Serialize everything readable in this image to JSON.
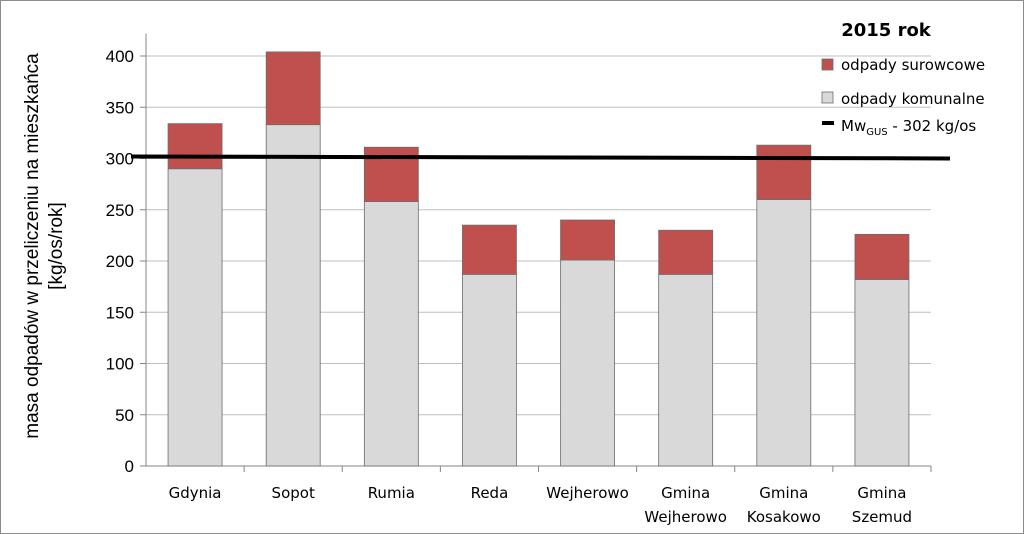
{
  "chart_data": {
    "type": "bar",
    "stacked": true,
    "title": "2015 rok",
    "ylabel": "masa odpadów w przeliczeniu na mieszkańca",
    "ylabel_unit": "[kg/os/rok]",
    "xlabel": "",
    "ylim": [
      0,
      420
    ],
    "yticks": [
      0,
      50,
      100,
      150,
      200,
      250,
      300,
      350,
      400
    ],
    "grid": true,
    "legend_position": "top-right",
    "categories": [
      [
        "Gdynia"
      ],
      [
        "Sopot"
      ],
      [
        "Rumia"
      ],
      [
        "Reda"
      ],
      [
        "Wejherowo"
      ],
      [
        "Gmina",
        "Wejherowo"
      ],
      [
        "Gmina",
        "Kosakowo"
      ],
      [
        "Gmina",
        "Szemud"
      ]
    ],
    "series": [
      {
        "name": "odpady komunalne",
        "color": "#d9d9d9",
        "values": [
          290,
          333,
          258,
          187,
          201,
          187,
          260,
          182
        ]
      },
      {
        "name": "odpady surowcowe",
        "color": "#c0504d",
        "values": [
          44,
          71,
          53,
          48,
          39,
          43,
          53,
          44
        ]
      }
    ],
    "reference_line": {
      "label_main": "Mw",
      "label_sub": "GUS",
      "label_rest": " - 302 kg/os",
      "value": 302,
      "color": "#000000"
    }
  }
}
